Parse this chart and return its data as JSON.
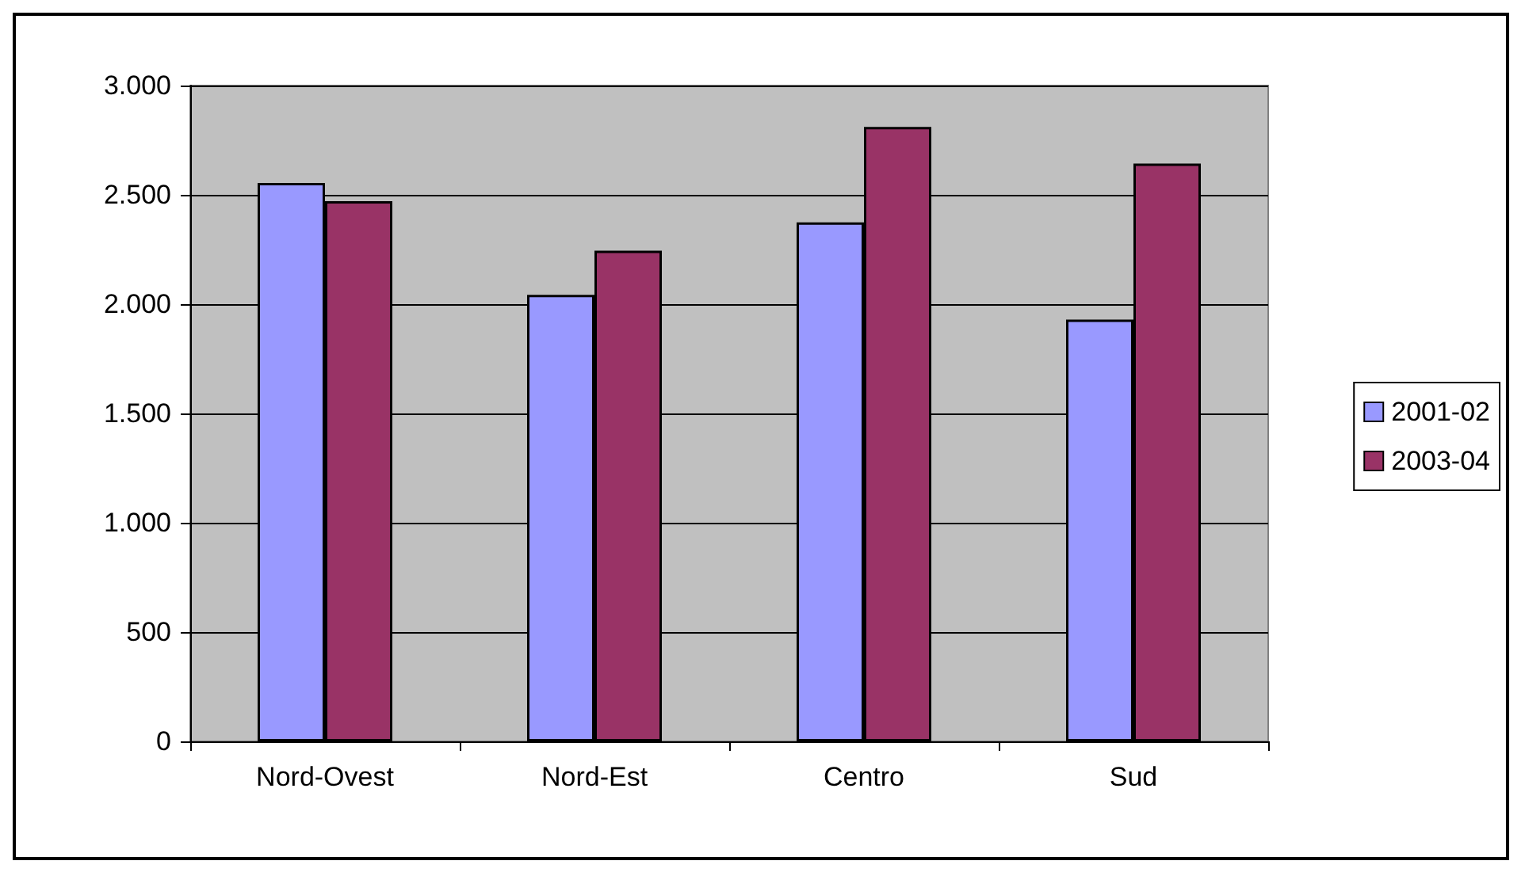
{
  "chart_data": {
    "type": "bar",
    "categories": [
      "Nord-Ovest",
      "Nord-Est",
      "Centro",
      "Sud"
    ],
    "series": [
      {
        "name": "2001-02",
        "color": "#9999ff",
        "values": [
          2554,
          2043,
          2374,
          1929
        ]
      },
      {
        "name": "2003-04",
        "color": "#993366",
        "values": [
          2471,
          2245,
          2811,
          2643
        ]
      }
    ],
    "ylim": [
      0,
      3000
    ],
    "yticks": [
      {
        "value": 0,
        "label": "0"
      },
      {
        "value": 500,
        "label": "500"
      },
      {
        "value": 1000,
        "label": "1.000"
      },
      {
        "value": 1500,
        "label": "1.500"
      },
      {
        "value": 2000,
        "label": "2.000"
      },
      {
        "value": 2500,
        "label": "2.500"
      },
      {
        "value": 3000,
        "label": "3.000"
      }
    ],
    "grid": "y",
    "legend": "right"
  }
}
